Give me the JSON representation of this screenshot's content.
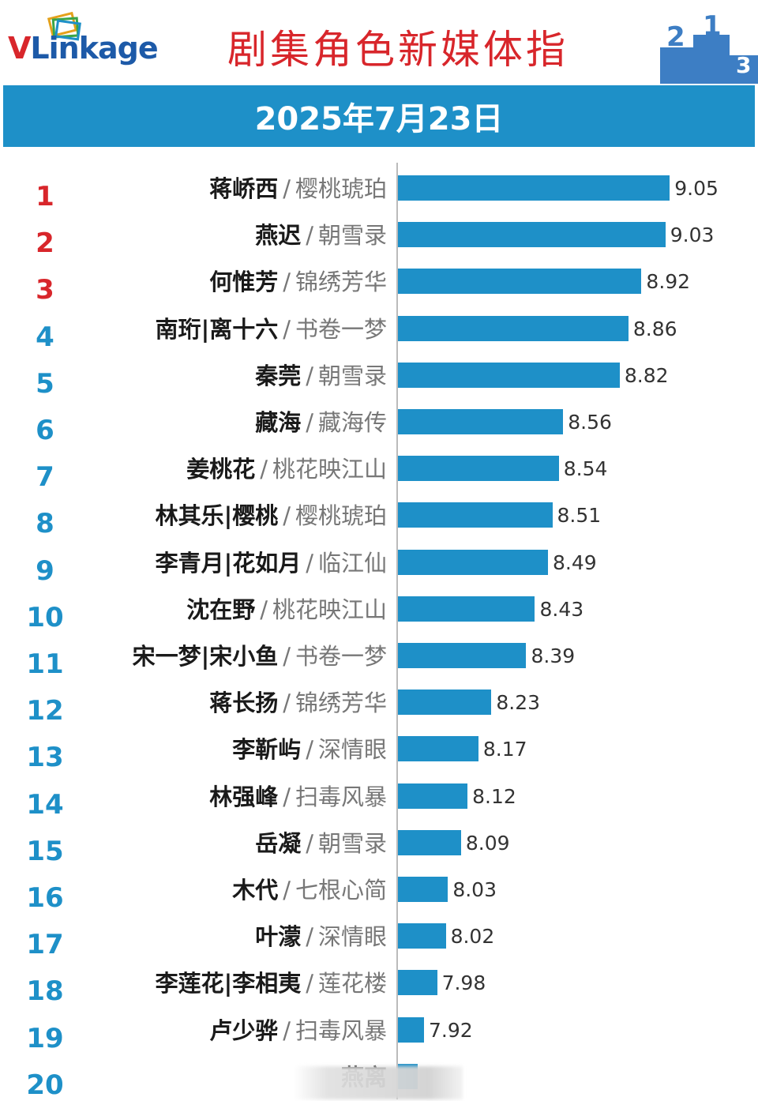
{
  "header": {
    "logo_v": "V",
    "logo_rest": "Linkage",
    "title": "剧集角色新媒体指",
    "date": "2025年7月23日"
  },
  "colors": {
    "bar": "#1e90c8",
    "band": "#1e90c8",
    "title": "#d8262b",
    "rank_top3": "#d8262b",
    "rank_other": "#1e90c8"
  },
  "chart_data": {
    "type": "bar",
    "orientation": "horizontal",
    "title": "剧集角色新媒体指",
    "subtitle": "2025年7月23日",
    "xlim": [
      7.8,
      9.1
    ],
    "rows": [
      {
        "rank": "1",
        "name": "蒋峤西",
        "drama": "樱桃琥珀",
        "value": 9.05,
        "label": "9.05"
      },
      {
        "rank": "2",
        "name": "燕迟",
        "drama": "朝雪录",
        "value": 9.03,
        "label": "9.03"
      },
      {
        "rank": "3",
        "name": "何惟芳",
        "drama": "锦绣芳华",
        "value": 8.92,
        "label": "8.92"
      },
      {
        "rank": "4",
        "name": "南珩|离十六",
        "drama": "书卷一梦",
        "value": 8.86,
        "label": "8.86"
      },
      {
        "rank": "5",
        "name": "秦莞",
        "drama": "朝雪录",
        "value": 8.82,
        "label": "8.82"
      },
      {
        "rank": "6",
        "name": "藏海",
        "drama": "藏海传",
        "value": 8.56,
        "label": "8.56"
      },
      {
        "rank": "7",
        "name": "姜桃花",
        "drama": "桃花映江山",
        "value": 8.54,
        "label": "8.54"
      },
      {
        "rank": "8",
        "name": "林其乐|樱桃",
        "drama": "樱桃琥珀",
        "value": 8.51,
        "label": "8.51"
      },
      {
        "rank": "9",
        "name": "李青月|花如月",
        "drama": "临江仙",
        "value": 8.49,
        "label": "8.49"
      },
      {
        "rank": "10",
        "name": "沈在野",
        "drama": "桃花映江山",
        "value": 8.43,
        "label": "8.43"
      },
      {
        "rank": "11",
        "name": "宋一梦|宋小鱼",
        "drama": "书卷一梦",
        "value": 8.39,
        "label": "8.39"
      },
      {
        "rank": "12",
        "name": "蒋长扬",
        "drama": "锦绣芳华",
        "value": 8.23,
        "label": "8.23"
      },
      {
        "rank": "13",
        "name": "李靳屿",
        "drama": "深情眼",
        "value": 8.17,
        "label": "8.17"
      },
      {
        "rank": "14",
        "name": "林强峰",
        "drama": "扫毒风暴",
        "value": 8.12,
        "label": "8.12"
      },
      {
        "rank": "15",
        "name": "岳凝",
        "drama": "朝雪录",
        "value": 8.09,
        "label": "8.09"
      },
      {
        "rank": "16",
        "name": "木代",
        "drama": "七根心简",
        "value": 8.03,
        "label": "8.03"
      },
      {
        "rank": "17",
        "name": "叶濛",
        "drama": "深情眼",
        "value": 8.02,
        "label": "8.02"
      },
      {
        "rank": "18",
        "name": "李莲花|李相夷",
        "drama": "莲花楼",
        "value": 7.98,
        "label": "7.98"
      },
      {
        "rank": "19",
        "name": "卢少骅",
        "drama": "扫毒风暴",
        "value": 7.92,
        "label": "7.92"
      },
      {
        "rank": "20",
        "name": "燕离",
        "drama": "",
        "value": 7.89,
        "label": ""
      }
    ]
  }
}
